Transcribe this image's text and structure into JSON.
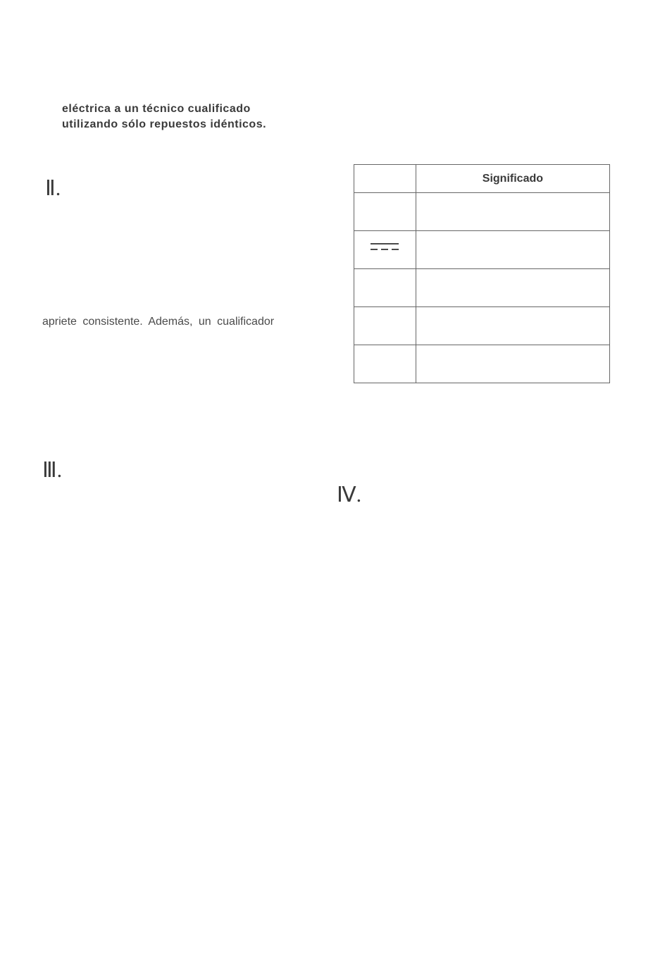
{
  "intro": {
    "line1": "eléctrica  a  un  técnico  cualificado",
    "line2": "utilizando sólo repuestos idénticos."
  },
  "sections": {
    "num2": "Ⅱ.",
    "num3": "Ⅲ.",
    "num4": "Ⅳ."
  },
  "body": {
    "text": "apriete  consistente.  Además,  un  cualificador"
  },
  "table": {
    "header": "Significado",
    "rows": [
      {
        "symbol": "",
        "meaning": ""
      },
      {
        "symbol": "dc",
        "meaning": ""
      },
      {
        "symbol": "",
        "meaning": ""
      },
      {
        "symbol": "",
        "meaning": ""
      },
      {
        "symbol": "",
        "meaning": ""
      }
    ]
  },
  "colors": {
    "text_dark": "#3a3a3a",
    "text_body": "#4a4a4a",
    "border": "#666666",
    "background": "#ffffff"
  },
  "typography": {
    "bold_fontsize": 16,
    "body_fontsize": 16,
    "section_num_fontsize": 30
  }
}
